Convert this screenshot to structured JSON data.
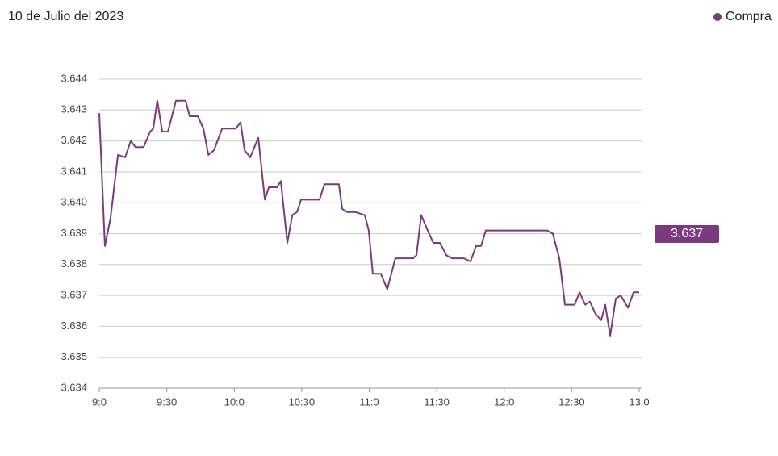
{
  "chart_data": {
    "type": "line",
    "title": "10 de Julio del 2023",
    "last_value": 3.637,
    "color": "#7b3a7f",
    "xlim": [
      540,
      780
    ],
    "xticks": [
      {
        "value": 540,
        "label": "9:0"
      },
      {
        "value": 570,
        "label": "9:30"
      },
      {
        "value": 600,
        "label": "10:0"
      },
      {
        "value": 630,
        "label": "10:30"
      },
      {
        "value": 660,
        "label": "11:0"
      },
      {
        "value": 690,
        "label": "11:30"
      },
      {
        "value": 720,
        "label": "12:0"
      },
      {
        "value": 750,
        "label": "12:30"
      },
      {
        "value": 780,
        "label": "13:0"
      }
    ],
    "ylim": [
      3.634,
      3.644
    ],
    "yticks": [
      3.634,
      3.635,
      3.636,
      3.637,
      3.638,
      3.639,
      {
        "value": 3.64,
        "label": "3.640"
      },
      3.641,
      3.642,
      3.643,
      3.644
    ],
    "grid": true,
    "legend": "top-right",
    "x": [
      540,
      542.5,
      545,
      548.3,
      551.5,
      554,
      556.1,
      559.7,
      562.6,
      564,
      565.8,
      568,
      570.5,
      574.1,
      576.6,
      578.4,
      580.2,
      583.8,
      586.3,
      588.5,
      591,
      594.6,
      600.7,
      602.8,
      604.6,
      607.1,
      610.7,
      613.6,
      615.4,
      619,
      620.7,
      623.6,
      625.8,
      627.9,
      629.7,
      635.8,
      637.9,
      640.1,
      646.5,
      648,
      650.1,
      653.7,
      658,
      659.8,
      661.6,
      665.2,
      668,
      671.6,
      679.5,
      681,
      683.1,
      686,
      688.5,
      691.4,
      694.3,
      696.8,
      702.1,
      705,
      707.5,
      709.7,
      711.8,
      739.1,
      741.6,
      744.5,
      747,
      751.3,
      753.5,
      756,
      758.1,
      760.6,
      763.1,
      764.9,
      767.1,
      769.6,
      771.8,
      775,
      777.5,
      780
    ],
    "series": [
      {
        "name": "Compra",
        "color": "#7b3a7f",
        "values": [
          3.6429,
          3.6386,
          3.6395,
          3.64155,
          3.64147,
          3.642,
          3.6418,
          3.6418,
          3.6423,
          3.6424,
          3.6433,
          3.6423,
          3.6423,
          3.6433,
          3.6433,
          3.6433,
          3.6428,
          3.6428,
          3.6424,
          3.64155,
          3.6417,
          3.6424,
          3.6424,
          3.6426,
          3.6417,
          3.64147,
          3.6421,
          3.6401,
          3.6405,
          3.6405,
          3.6407,
          3.6387,
          3.6396,
          3.6397,
          3.6401,
          3.6401,
          3.6401,
          3.6406,
          3.6406,
          3.6398,
          3.6397,
          3.6397,
          3.6396,
          3.6391,
          3.6377,
          3.6377,
          3.6372,
          3.6382,
          3.6382,
          3.6383,
          3.6396,
          3.6391,
          3.6387,
          3.6387,
          3.6383,
          3.6382,
          3.6382,
          3.6381,
          3.6386,
          3.6386,
          3.6391,
          3.6391,
          3.639,
          3.6382,
          3.6367,
          3.6367,
          3.6371,
          3.6367,
          3.6368,
          3.6364,
          3.6362,
          3.6367,
          3.6357,
          3.6369,
          3.637,
          3.6366,
          3.6371,
          3.6371
        ]
      }
    ]
  }
}
